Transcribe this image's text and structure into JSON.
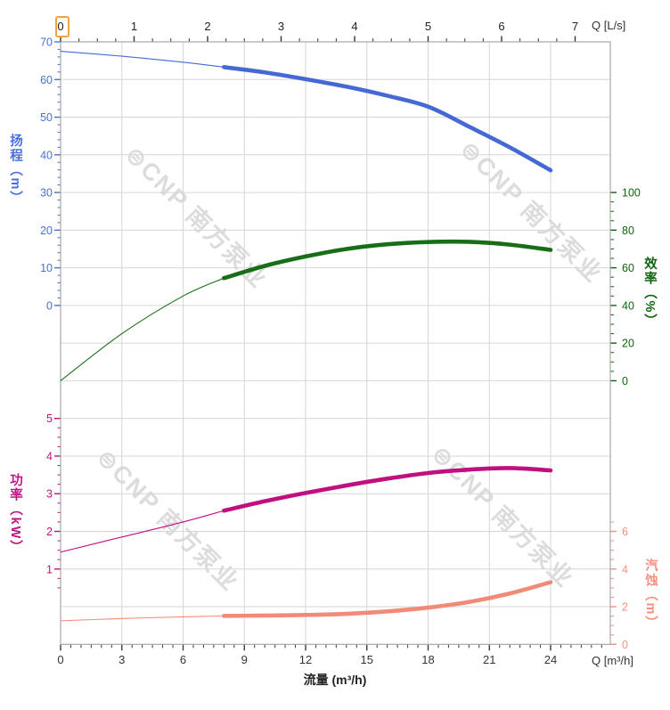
{
  "chart": {
    "watermark": {
      "text": "⊜CNP 南方泵业",
      "color": "#dcdcdc"
    },
    "highlight_color": "#f0a33a",
    "grid_color": "#d6d6d6",
    "border_color": "#a8a8a8",
    "axes": {
      "top": {
        "title": "Q [L/s]",
        "color": "#333333",
        "ticks": [
          "0",
          "1",
          "2",
          "3",
          "4",
          "5",
          "6",
          "7"
        ]
      },
      "bottom": {
        "title": "流量 (m³/h)",
        "corner_label": "Q [m³/h]",
        "color": "#3c3c3c",
        "ticks": [
          "0",
          "3",
          "6",
          "9",
          "12",
          "15",
          "18",
          "21",
          "24"
        ]
      },
      "head": {
        "title": "扬程（m）",
        "color": "#4a6fd8",
        "ticks": [
          "70",
          "60",
          "50",
          "40",
          "30",
          "20",
          "10",
          "0"
        ]
      },
      "power": {
        "title": "功率（kW）",
        "color": "#c0147e",
        "ticks": [
          "5",
          "4",
          "3",
          "2",
          "1"
        ]
      },
      "efficiency": {
        "title": "效率（%）",
        "color": "#0e640e",
        "ticks": [
          "100",
          "80",
          "60",
          "40",
          "20",
          "0"
        ]
      },
      "npsh": {
        "title": "汽蚀（m）",
        "color": "#f4907f",
        "ticks": [
          "6",
          "4",
          "2",
          "0"
        ]
      }
    }
  },
  "chart_data": {
    "type": "line",
    "title": "",
    "x_axis": {
      "label": "流量 (m³/h)",
      "secondary_label": "Q [L/s]",
      "range_m3h": [
        0,
        26.9
      ],
      "secondary_range_ls": [
        0,
        7
      ],
      "major_tick_step": 3,
      "minor_tick_step": 0.5,
      "ticks": [
        0,
        3,
        6,
        9,
        12,
        15,
        18,
        21,
        24
      ]
    },
    "legend": "none",
    "grid": true,
    "series": [
      {
        "name": "扬程",
        "unit": "m",
        "axis": "head",
        "color": "#4569d4",
        "axis_range": [
          0,
          70
        ],
        "axis_major_step": 10,
        "x": [
          0,
          3,
          6,
          8,
          10,
          12,
          14,
          16,
          18,
          20,
          22,
          24
        ],
        "y": [
          67.5,
          66.2,
          64.6,
          63.3,
          61.9,
          60.1,
          58.1,
          55.7,
          52.8,
          47.5,
          42.0,
          35.9
        ],
        "thick_from_x": 8
      },
      {
        "name": "效率",
        "unit": "%",
        "axis": "efficiency",
        "color": "#176e17",
        "axis_range": [
          0,
          100
        ],
        "axis_major_step": 20,
        "x": [
          0,
          3,
          6,
          8,
          10,
          12,
          14,
          16,
          18,
          20,
          22,
          24
        ],
        "y": [
          0,
          25,
          45,
          54.5,
          61,
          66,
          70,
          72.5,
          73.7,
          73.8,
          72.3,
          69.5
        ],
        "thick_from_x": 8
      },
      {
        "name": "功率",
        "unit": "kW",
        "axis": "power",
        "color": "#c01080",
        "axis_range": [
          1,
          5
        ],
        "axis_major_step": 1,
        "x": [
          0,
          3,
          6,
          8,
          10,
          12,
          14,
          16,
          18,
          20,
          22,
          24
        ],
        "y": [
          1.45,
          1.85,
          2.25,
          2.55,
          2.8,
          3.02,
          3.22,
          3.4,
          3.55,
          3.64,
          3.68,
          3.62
        ],
        "thick_from_x": 8
      },
      {
        "name": "汽蚀",
        "unit": "m",
        "axis": "npsh",
        "color": "#f28a78",
        "axis_range": [
          0,
          6
        ],
        "axis_major_step": 2,
        "x": [
          0,
          3,
          6,
          8,
          10,
          12,
          14,
          16,
          18,
          20,
          22,
          24
        ],
        "y": [
          1.25,
          1.37,
          1.46,
          1.51,
          1.53,
          1.56,
          1.62,
          1.75,
          1.95,
          2.25,
          2.7,
          3.3
        ],
        "thick_from_x": 8
      }
    ]
  }
}
